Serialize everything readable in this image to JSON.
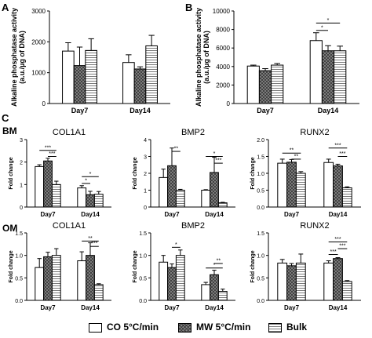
{
  "panel_letters": [
    "A",
    "B",
    "C"
  ],
  "row_labels": [
    "BM",
    "OM"
  ],
  "legend": {
    "items": [
      {
        "label": "CO 5°C/min",
        "pattern": "open"
      },
      {
        "label": "MW 5°C/min",
        "pattern": "crosshatch"
      },
      {
        "label": "Bulk",
        "pattern": "horizontal-lines"
      }
    ]
  },
  "colors": {
    "bar_outline": "#000000",
    "mw_fill": "#8a8a8a",
    "bulk_lines": "#7a7a7a"
  },
  "chart_data": [
    {
      "id": "A",
      "type": "bar",
      "title": "",
      "xlabel": "",
      "ylabel": "Alkaline phosphatase activity\n(a.u./µg of DNA)",
      "categories": [
        "Day7",
        "Day14"
      ],
      "ylim": [
        0,
        3000
      ],
      "yticks": [
        0,
        1000,
        2000,
        3000
      ],
      "ytick_labels": [
        "0",
        "1000",
        "2000",
        "3000"
      ],
      "series": [
        {
          "name": "CO 5°C/min",
          "values": [
            1700,
            1330
          ],
          "errors": [
            270,
            250
          ]
        },
        {
          "name": "MW 5°C/min",
          "values": [
            1230,
            1120
          ],
          "errors": [
            600,
            70
          ]
        },
        {
          "name": "Bulk",
          "values": [
            1720,
            1870
          ],
          "errors": [
            380,
            340
          ]
        }
      ],
      "significance": []
    },
    {
      "id": "B",
      "type": "bar",
      "title": "",
      "xlabel": "",
      "ylabel": "Alkaline phosphatase activity\n(a.u./µg of DNA)",
      "categories": [
        "Day7",
        "Day14"
      ],
      "ylim": [
        0,
        10000
      ],
      "yticks": [
        0,
        2000,
        4000,
        6000,
        8000,
        10000
      ],
      "ytick_labels": [
        "0",
        "2000",
        "4000",
        "6000",
        "8000",
        "10000"
      ],
      "series": [
        {
          "name": "CO 5°C/min",
          "values": [
            4050,
            6800
          ],
          "errors": [
            100,
            850
          ]
        },
        {
          "name": "MW 5°C/min",
          "values": [
            3550,
            5700
          ],
          "errors": [
            220,
            550
          ]
        },
        {
          "name": "Bulk",
          "values": [
            4150,
            5700
          ],
          "errors": [
            170,
            500
          ]
        }
      ],
      "significance": [
        {
          "category": 1,
          "from": 0,
          "to": 1,
          "label": "*",
          "y": 7900
        },
        {
          "category": 1,
          "from": 0,
          "to": 2,
          "label": "*",
          "y": 8700
        }
      ]
    },
    {
      "id": "BM-COL1A1",
      "type": "bar",
      "title": "COL1A1",
      "xlabel": "",
      "ylabel": "Fold change",
      "categories": [
        "Day7",
        "Day14"
      ],
      "ylim": [
        0,
        3
      ],
      "yticks": [
        0,
        1,
        2,
        3
      ],
      "ytick_labels": [
        "0",
        "1",
        "2",
        "3"
      ],
      "series": [
        {
          "name": "CO 5°C/min",
          "values": [
            1.8,
            0.85
          ],
          "errors": [
            0.08,
            0.1
          ]
        },
        {
          "name": "MW 5°C/min",
          "values": [
            2.05,
            0.55
          ],
          "errors": [
            0.12,
            0.15
          ]
        },
        {
          "name": "Bulk",
          "values": [
            1.0,
            0.57
          ],
          "errors": [
            0.15,
            0.12
          ]
        }
      ],
      "significance": [
        {
          "category": 0,
          "from": 0,
          "to": 2,
          "label": "***",
          "y": 2.52
        },
        {
          "category": 0,
          "from": 1,
          "to": 2,
          "label": "***",
          "y": 2.25
        },
        {
          "category": 1,
          "from": 0,
          "to": 2,
          "label": "*",
          "y": 1.35
        },
        {
          "category": 1,
          "from": 0,
          "to": 1,
          "label": "*",
          "y": 1.05
        }
      ]
    },
    {
      "id": "BM-BMP2",
      "type": "bar",
      "title": "BMP2",
      "xlabel": "",
      "ylabel": "Fold change",
      "categories": [
        "Day7",
        "Day14"
      ],
      "ylim": [
        0,
        4
      ],
      "yticks": [
        0,
        1,
        2,
        3,
        4
      ],
      "ytick_labels": [
        "0",
        "1",
        "2",
        "3",
        "4"
      ],
      "series": [
        {
          "name": "CO 5°C/min",
          "values": [
            1.75,
            1.0
          ],
          "errors": [
            0.5,
            0.03
          ]
        },
        {
          "name": "MW 5°C/min",
          "values": [
            2.45,
            2.05
          ],
          "errors": [
            1.05,
            0.9
          ]
        },
        {
          "name": "Bulk",
          "values": [
            1.0,
            0.25
          ],
          "errors": [
            0.05,
            0.03
          ]
        }
      ],
      "significance": [
        {
          "category": 0,
          "from": 1,
          "to": 2,
          "label": "**",
          "y": 3.3
        },
        {
          "category": 1,
          "from": 0,
          "to": 2,
          "label": "*",
          "y": 3.0
        },
        {
          "category": 1,
          "from": 1,
          "to": 2,
          "label": "***",
          "y": 2.6
        }
      ]
    },
    {
      "id": "BM-RUNX2",
      "type": "bar",
      "title": "RUNX2",
      "xlabel": "",
      "ylabel": "Fold change",
      "categories": [
        "Day7",
        "Day14"
      ],
      "ylim": [
        0,
        2
      ],
      "yticks": [
        0.0,
        0.5,
        1.0,
        1.5,
        2.0
      ],
      "ytick_labels": [
        "0.0",
        "0.5",
        "1.0",
        "1.5",
        "2.0"
      ],
      "series": [
        {
          "name": "CO 5°C/min",
          "values": [
            1.3,
            1.32
          ],
          "errors": [
            0.12,
            0.1
          ]
        },
        {
          "name": "MW 5°C/min",
          "values": [
            1.33,
            1.22
          ],
          "errors": [
            0.08,
            0.05
          ]
        },
        {
          "name": "Bulk",
          "values": [
            1.0,
            0.57
          ],
          "errors": [
            0.05,
            0.03
          ]
        }
      ],
      "significance": [
        {
          "category": 0,
          "from": 0,
          "to": 2,
          "label": "**",
          "y": 1.6
        },
        {
          "category": 0,
          "from": 1,
          "to": 2,
          "label": "**",
          "y": 1.42
        },
        {
          "category": 1,
          "from": 0,
          "to": 2,
          "label": "***",
          "y": 1.75
        },
        {
          "category": 1,
          "from": 1,
          "to": 2,
          "label": "***",
          "y": 1.5
        }
      ]
    },
    {
      "id": "OM-COL1A1",
      "type": "bar",
      "title": "COL1A1",
      "xlabel": "",
      "ylabel": "Fold change",
      "categories": [
        "Day7",
        "Day14"
      ],
      "ylim": [
        0,
        1.5
      ],
      "yticks": [
        0.0,
        0.5,
        1.0,
        1.5
      ],
      "ytick_labels": [
        "0.0",
        "0.5",
        "1.0",
        "1.5"
      ],
      "series": [
        {
          "name": "CO 5°C/min",
          "values": [
            0.73,
            0.88
          ],
          "errors": [
            0.2,
            0.2
          ]
        },
        {
          "name": "MW 5°C/min",
          "values": [
            0.97,
            1.0
          ],
          "errors": [
            0.1,
            0.28
          ]
        },
        {
          "name": "Bulk",
          "values": [
            1.0,
            0.35
          ],
          "errors": [
            0.15,
            0.02
          ]
        }
      ],
      "significance": [
        {
          "category": 1,
          "from": 0,
          "to": 2,
          "label": "**",
          "y": 1.32
        },
        {
          "category": 1,
          "from": 1,
          "to": 2,
          "label": "***",
          "y": 1.2
        }
      ]
    },
    {
      "id": "OM-BMP2",
      "type": "bar",
      "title": "BMP2",
      "xlabel": "",
      "ylabel": "Fold change",
      "categories": [
        "Day7",
        "Day14"
      ],
      "ylim": [
        0,
        1.5
      ],
      "yticks": [
        0.0,
        0.5,
        1.0,
        1.5
      ],
      "ytick_labels": [
        "0.0",
        "0.5",
        "1.0",
        "1.5"
      ],
      "series": [
        {
          "name": "CO 5°C/min",
          "values": [
            0.85,
            0.35
          ],
          "errors": [
            0.15,
            0.05
          ]
        },
        {
          "name": "MW 5°C/min",
          "values": [
            0.73,
            0.57
          ],
          "errors": [
            0.08,
            0.1
          ]
        },
        {
          "name": "Bulk",
          "values": [
            1.0,
            0.2
          ],
          "errors": [
            0.12,
            0.05
          ]
        }
      ],
      "significance": [
        {
          "category": 0,
          "from": 1,
          "to": 2,
          "label": "*",
          "y": 1.18
        },
        {
          "category": 1,
          "from": 0,
          "to": 2,
          "label": "*",
          "y": 0.72
        },
        {
          "category": 1,
          "from": 1,
          "to": 2,
          "label": "**",
          "y": 0.82
        }
      ]
    },
    {
      "id": "OM-RUNX2",
      "type": "bar",
      "title": "RUNX2",
      "xlabel": "",
      "ylabel": "Fold change",
      "categories": [
        "Day7",
        "Day14"
      ],
      "ylim": [
        0,
        1.5
      ],
      "yticks": [
        0.0,
        0.5,
        1.0,
        1.5
      ],
      "ytick_labels": [
        "0.0",
        "0.5",
        "1.0",
        "1.5"
      ],
      "series": [
        {
          "name": "CO 5°C/min",
          "values": [
            0.83,
            0.83
          ],
          "errors": [
            0.08,
            0.05
          ]
        },
        {
          "name": "MW 5°C/min",
          "values": [
            0.77,
            0.93
          ],
          "errors": [
            0.05,
            0.02
          ]
        },
        {
          "name": "Bulk",
          "values": [
            0.83,
            0.42
          ],
          "errors": [
            0.2,
            0.02
          ]
        }
      ],
      "significance": [
        {
          "category": 1,
          "from": 0,
          "to": 2,
          "label": "***",
          "y": 1.3
        },
        {
          "category": 1,
          "from": 1,
          "to": 2,
          "label": "***",
          "y": 1.15
        },
        {
          "category": 1,
          "from": 0,
          "to": 1,
          "label": "***",
          "y": 1.02
        }
      ]
    }
  ]
}
